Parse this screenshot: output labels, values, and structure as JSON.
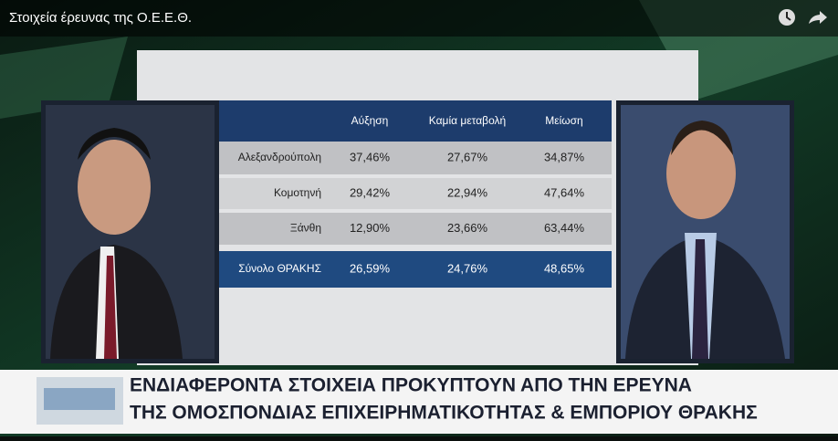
{
  "video_title": "Στοιχεία έρευνας της Ο.Ε.Ε.Θ.",
  "table": {
    "columns": [
      "Αύξηση",
      "Καμία μεταβολή",
      "Μείωση"
    ],
    "rows": [
      [
        "Αλεξανδρούπολη",
        "37,46%",
        "27,67%",
        "34,87%"
      ],
      [
        "Κομοτηνή",
        "29,42%",
        "22,94%",
        "47,64%"
      ],
      [
        "Ξάνθη",
        "12,90%",
        "23,66%",
        "63,44%"
      ],
      [
        "Σύνολο ΘΡΑΚΗΣ",
        "26,59%",
        "24,76%",
        "48,65%"
      ]
    ]
  },
  "ticker": {
    "lines": [
      "ΕΝΔΙΑΦΕΡΟΝΤΑ ΣΤΟΙΧΕΙΑ ΠΡΟΚΥΠΤΟΥΝ ΑΠΟ ΤΗΝ ΕΡΕΥΝΑ",
      "ΤΗΣ ΟΜΟΣΠΟΝΔΙΑΣ ΕΠΙΧΕΙΡΗΜΑΤΙΚΟΤΗΤΑΣ & ΕΜΠΟΡΙΟΥ ΘΡΑΚΗΣ"
    ]
  }
}
